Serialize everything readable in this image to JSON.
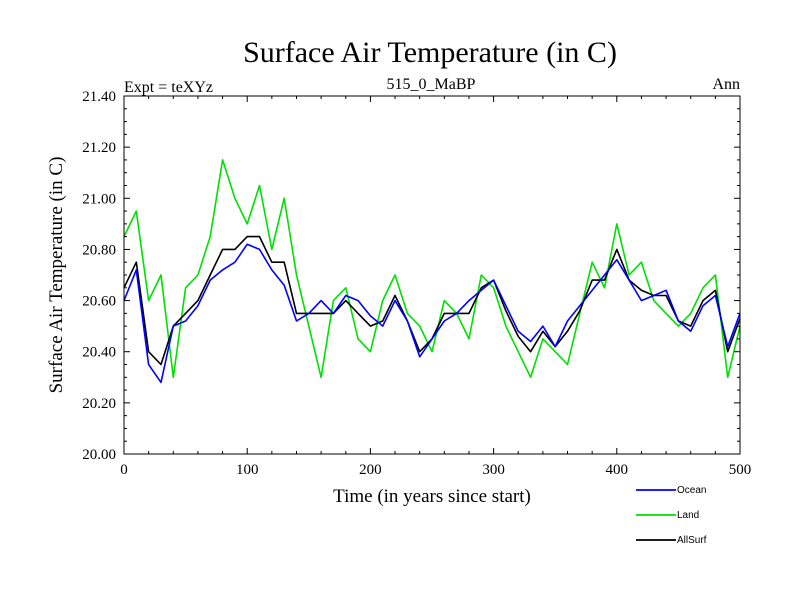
{
  "title": "Surface Air Temperature (in C)",
  "subtitle_left": "Expt = teXYz",
  "subtitle_center": "515_0_MaBP",
  "subtitle_right": "Ann",
  "chart_data": {
    "type": "line",
    "xlabel": "Time (in years since start)",
    "ylabel": "Surface Air Temperature (in C)",
    "xlim": [
      0,
      500
    ],
    "ylim": [
      20.0,
      21.4
    ],
    "x_ticks": [
      0,
      100,
      200,
      300,
      400,
      500
    ],
    "x_tick_labels": [
      "0",
      "100",
      "200",
      "300",
      "400",
      "500"
    ],
    "y_ticks": [
      20.0,
      20.2,
      20.4,
      20.6,
      20.8,
      21.0,
      21.2,
      21.4
    ],
    "y_tick_labels": [
      "20.00",
      "20.20",
      "20.40",
      "20.60",
      "20.80",
      "21.00",
      "21.20",
      "21.40"
    ],
    "grid": false,
    "legend_position": "bottom-right, below plot",
    "x": [
      0,
      10,
      20,
      30,
      40,
      50,
      60,
      70,
      80,
      90,
      100,
      110,
      120,
      130,
      140,
      150,
      160,
      170,
      180,
      190,
      200,
      210,
      220,
      230,
      240,
      250,
      260,
      270,
      280,
      290,
      300,
      310,
      320,
      330,
      340,
      350,
      360,
      370,
      380,
      390,
      400,
      410,
      420,
      430,
      440,
      450,
      460,
      470,
      480,
      490,
      500
    ],
    "series": [
      {
        "name": "Ocean",
        "color": "#0000ff",
        "values": [
          20.6,
          20.72,
          20.35,
          20.28,
          20.5,
          20.52,
          20.58,
          20.68,
          20.72,
          20.75,
          20.82,
          20.8,
          20.72,
          20.66,
          20.52,
          20.55,
          20.6,
          20.55,
          20.62,
          20.6,
          20.54,
          20.5,
          20.6,
          20.52,
          20.38,
          20.45,
          20.52,
          20.55,
          20.6,
          20.64,
          20.68,
          20.58,
          20.48,
          20.44,
          20.5,
          20.42,
          20.52,
          20.58,
          20.64,
          20.7,
          20.76,
          20.68,
          20.6,
          20.62,
          20.64,
          20.52,
          20.48,
          20.58,
          20.62,
          20.42,
          20.55
        ]
      },
      {
        "name": "Land",
        "color": "#00e000",
        "values": [
          20.85,
          20.95,
          20.6,
          20.7,
          20.3,
          20.65,
          20.7,
          20.85,
          21.15,
          21.0,
          20.9,
          21.05,
          20.8,
          21.0,
          20.7,
          20.5,
          20.3,
          20.6,
          20.65,
          20.45,
          20.4,
          20.6,
          20.7,
          20.55,
          20.5,
          20.4,
          20.6,
          20.55,
          20.45,
          20.7,
          20.65,
          20.5,
          20.4,
          20.3,
          20.45,
          20.4,
          20.35,
          20.55,
          20.75,
          20.65,
          20.9,
          20.7,
          20.75,
          20.6,
          20.55,
          20.5,
          20.55,
          20.65,
          20.7,
          20.3,
          20.5
        ]
      },
      {
        "name": "AllSurf",
        "color": "#000000",
        "values": [
          20.65,
          20.75,
          20.4,
          20.35,
          20.5,
          20.55,
          20.6,
          20.7,
          20.8,
          20.8,
          20.85,
          20.85,
          20.75,
          20.75,
          20.55,
          20.55,
          20.55,
          20.55,
          20.6,
          20.55,
          20.5,
          20.52,
          20.62,
          20.52,
          20.4,
          20.45,
          20.55,
          20.55,
          20.55,
          20.65,
          20.68,
          20.56,
          20.46,
          20.4,
          20.48,
          20.42,
          20.48,
          20.56,
          20.68,
          20.68,
          20.8,
          20.68,
          20.64,
          20.62,
          20.62,
          20.52,
          20.5,
          20.6,
          20.64,
          20.4,
          20.53
        ]
      }
    ]
  }
}
